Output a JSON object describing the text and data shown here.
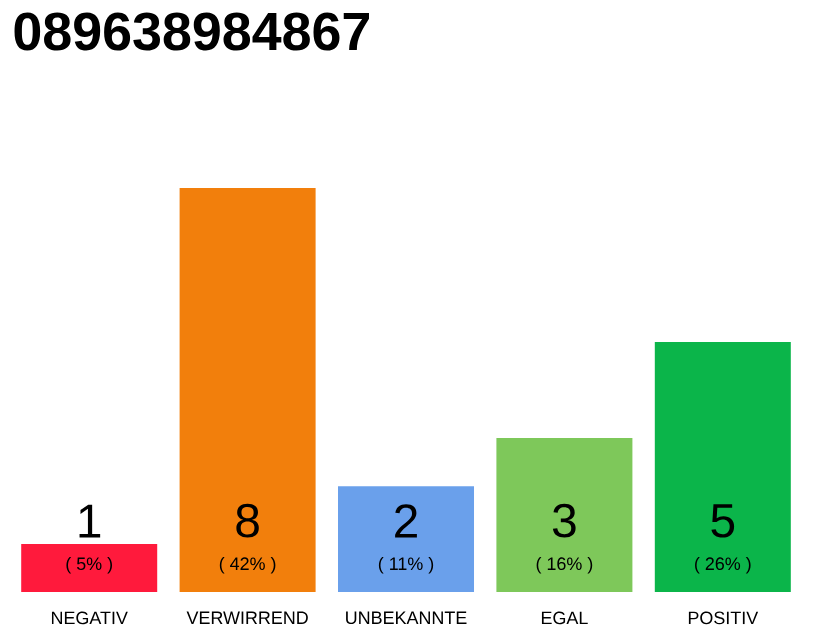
{
  "chart_data": {
    "type": "bar",
    "title": "089638984867",
    "categories": [
      "NEGATIV",
      "VERWIRREND",
      "UNBEKANNTE",
      "EGAL",
      "POSITIV"
    ],
    "values": [
      5,
      42,
      11,
      16,
      26
    ],
    "colors": [
      "#ff1a3c",
      "#f27f0c",
      "#6aa0eb",
      "#7ec85a",
      "#0bb54a"
    ],
    "value_labels": [
      "( 5% )",
      "( 42% )",
      "( 11% )",
      "( 16% )",
      "( 26% )"
    ],
    "annotations": [
      "1",
      "8",
      "2",
      "3",
      "5"
    ]
  }
}
